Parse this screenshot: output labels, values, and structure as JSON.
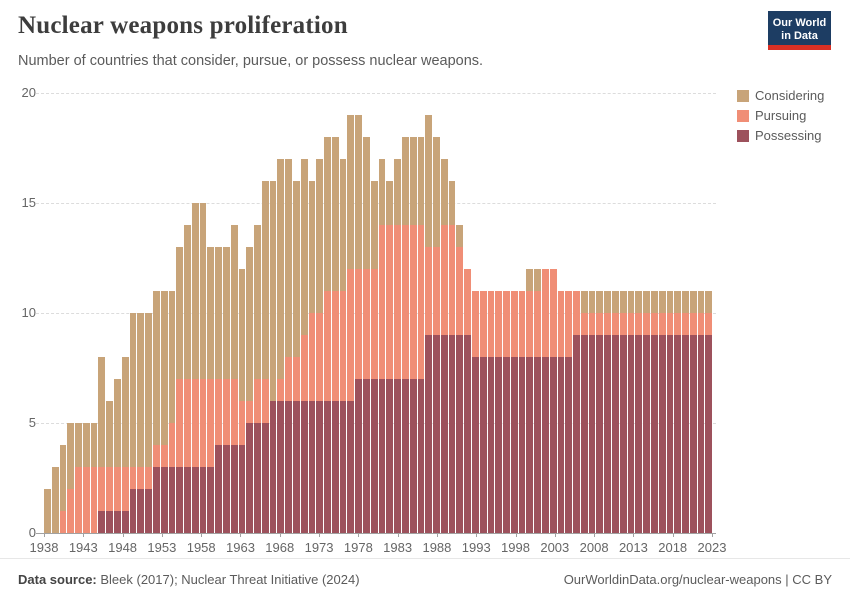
{
  "header": {
    "title": "Nuclear weapons proliferation",
    "subtitle": "Number of countries that consider, pursue, or possess nuclear weapons."
  },
  "logo": {
    "line1": "Our World",
    "line2": "in Data"
  },
  "footer": {
    "source_label": "Data source:",
    "source_value": " Bleek (2017); Nuclear Threat Initiative (2024)",
    "right": "OurWorldinData.org/nuclear-weapons | CC BY"
  },
  "chart_data": {
    "type": "bar",
    "stacked": true,
    "title": "Nuclear weapons proliferation",
    "xlabel": "",
    "ylabel": "",
    "ylim": [
      0,
      20
    ],
    "yticks": [
      0,
      5,
      10,
      15,
      20
    ],
    "xticks": [
      1938,
      1943,
      1948,
      1953,
      1958,
      1963,
      1968,
      1973,
      1978,
      1983,
      1988,
      1993,
      1998,
      2003,
      2008,
      2013,
      2018,
      2023
    ],
    "grid": "dashed",
    "legend_position": "top-right",
    "x": [
      1938,
      1939,
      1940,
      1941,
      1942,
      1943,
      1944,
      1945,
      1946,
      1947,
      1948,
      1949,
      1950,
      1951,
      1952,
      1953,
      1954,
      1955,
      1956,
      1957,
      1958,
      1959,
      1960,
      1961,
      1962,
      1963,
      1964,
      1965,
      1966,
      1967,
      1968,
      1969,
      1970,
      1971,
      1972,
      1973,
      1974,
      1975,
      1976,
      1977,
      1978,
      1979,
      1980,
      1981,
      1982,
      1983,
      1984,
      1985,
      1986,
      1987,
      1988,
      1989,
      1990,
      1991,
      1992,
      1993,
      1994,
      1995,
      1996,
      1997,
      1998,
      1999,
      2000,
      2001,
      2002,
      2003,
      2004,
      2005,
      2006,
      2007,
      2008,
      2009,
      2010,
      2011,
      2012,
      2013,
      2014,
      2015,
      2016,
      2017,
      2018,
      2019,
      2020,
      2021,
      2022,
      2023
    ],
    "series": [
      {
        "name": "Considering",
        "color": "#C8A479",
        "values": [
          2,
          3,
          3,
          3,
          2,
          2,
          2,
          5,
          3,
          4,
          5,
          7,
          7,
          7,
          7,
          7,
          6,
          6,
          7,
          8,
          8,
          6,
          6,
          6,
          7,
          6,
          7,
          7,
          9,
          10,
          10,
          9,
          8,
          8,
          6,
          7,
          7,
          7,
          6,
          7,
          7,
          6,
          4,
          3,
          2,
          3,
          4,
          4,
          4,
          6,
          5,
          3,
          2,
          1,
          0,
          0,
          0,
          0,
          0,
          0,
          0,
          0,
          1,
          1,
          0,
          0,
          0,
          0,
          0,
          1,
          1,
          1,
          1,
          1,
          1,
          1,
          1,
          1,
          1,
          1,
          1,
          1,
          1,
          1,
          1,
          1
        ]
      },
      {
        "name": "Pursuing",
        "color": "#F08E76",
        "values": [
          0,
          0,
          1,
          2,
          3,
          3,
          3,
          2,
          2,
          2,
          2,
          1,
          1,
          1,
          1,
          1,
          2,
          4,
          4,
          4,
          4,
          4,
          3,
          3,
          3,
          2,
          1,
          2,
          2,
          0,
          1,
          2,
          2,
          3,
          4,
          4,
          5,
          5,
          5,
          6,
          5,
          5,
          5,
          7,
          7,
          7,
          7,
          7,
          7,
          4,
          4,
          5,
          5,
          4,
          3,
          3,
          3,
          3,
          3,
          3,
          3,
          3,
          3,
          3,
          4,
          4,
          3,
          3,
          2,
          1,
          1,
          1,
          1,
          1,
          1,
          1,
          1,
          1,
          1,
          1,
          1,
          1,
          1,
          1,
          1,
          1
        ]
      },
      {
        "name": "Possessing",
        "color": "#9D515C",
        "values": [
          0,
          0,
          0,
          0,
          0,
          0,
          0,
          1,
          1,
          1,
          1,
          2,
          2,
          2,
          3,
          3,
          3,
          3,
          3,
          3,
          3,
          3,
          4,
          4,
          4,
          4,
          5,
          5,
          5,
          6,
          6,
          6,
          6,
          6,
          6,
          6,
          6,
          6,
          6,
          6,
          7,
          7,
          7,
          7,
          7,
          7,
          7,
          7,
          7,
          9,
          9,
          9,
          9,
          9,
          9,
          8,
          8,
          8,
          8,
          8,
          8,
          8,
          8,
          8,
          8,
          8,
          8,
          8,
          9,
          9,
          9,
          9,
          9,
          9,
          9,
          9,
          9,
          9,
          9,
          9,
          9,
          9,
          9,
          9,
          9,
          9
        ]
      }
    ]
  }
}
